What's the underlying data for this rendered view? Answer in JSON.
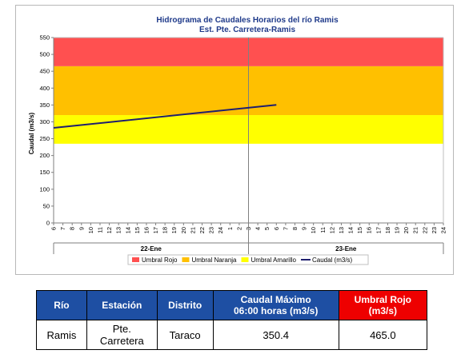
{
  "chart_data": {
    "type": "line",
    "title": "Hidrograma de Caudales Horarios del río Ramis",
    "subtitle": "Est. Pte. Carretera-Ramis",
    "ylabel": "Caudal  (m3/s)",
    "ylim": [
      0,
      550
    ],
    "yticks": [
      0,
      50,
      100,
      150,
      200,
      250,
      300,
      350,
      400,
      450,
      500,
      550
    ],
    "x_hour_ticks": [
      "6",
      "7",
      "8",
      "9",
      "10",
      "11",
      "12",
      "13",
      "14",
      "15",
      "16",
      "17",
      "18",
      "19",
      "20",
      "21",
      "22",
      "23",
      "24",
      "1",
      "2",
      "3",
      "4",
      "5",
      "6",
      "7",
      "8",
      "9",
      "10",
      "11",
      "12",
      "13",
      "14",
      "15",
      "16",
      "17",
      "18",
      "19",
      "20",
      "21",
      "22",
      "23",
      "24"
    ],
    "day_labels": [
      "22-Ene",
      "23-Ene"
    ],
    "threshold_bands": [
      {
        "name": "Umbral Amarillo",
        "from": 235,
        "to": 320,
        "color": "#ffff00"
      },
      {
        "name": "Umbral Naranja",
        "from": 320,
        "to": 465,
        "color": "#ffc000"
      },
      {
        "name": "Umbral Rojo",
        "from": 465,
        "to": 550,
        "color": "#ff5050"
      }
    ],
    "series": [
      {
        "name": "Caudal (m3/s)",
        "color": "#1f1f6e",
        "x": [
          "22-Ene 06:00",
          "23-Ene 06:00"
        ],
        "values": [
          282,
          350.4
        ]
      }
    ],
    "legend": {
      "position": "bottom",
      "items": [
        {
          "label": "Umbral Rojo",
          "color": "#ff5050",
          "kind": "box"
        },
        {
          "label": "Umbral Naranja",
          "color": "#ffc000",
          "kind": "box"
        },
        {
          "label": "Umbral Amarillo",
          "color": "#ffff00",
          "kind": "box"
        },
        {
          "label": "Caudal (m3/s)",
          "color": "#1f1f6e",
          "kind": "line"
        }
      ]
    }
  },
  "table": {
    "headers": {
      "rio": "Río",
      "estacion": "Estación",
      "distrito": "Distrito",
      "caudal_line1": "Caudal Máximo",
      "caudal_line2": "06:00 horas (m3/s)",
      "umbral_line1": "Umbral Rojo",
      "umbral_line2": "(m3/s)"
    },
    "row": {
      "rio": "Ramis",
      "estacion_line1": "Pte.",
      "estacion_line2": "Carretera",
      "distrito": "Taraco",
      "caudal": "350.4",
      "umbral": "465.0"
    }
  }
}
